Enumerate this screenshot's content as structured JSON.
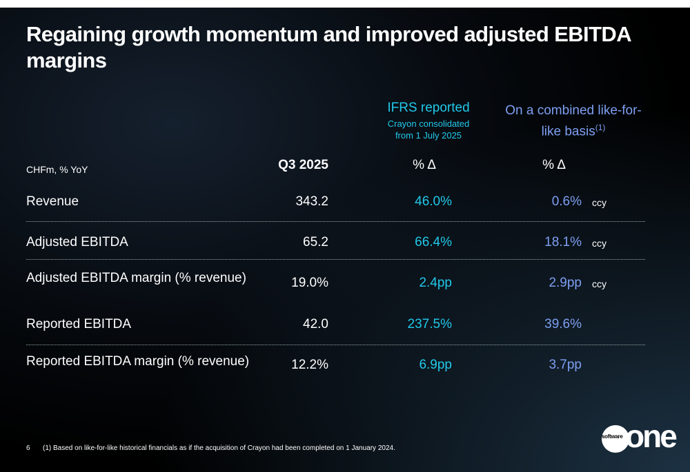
{
  "title": "Regaining growth momentum and improved adjusted EBITDA margins",
  "header": {
    "ifrs_title": "IFRS reported",
    "ifrs_sub1": "Crayon consolidated",
    "ifrs_sub2": "from 1 July 2025",
    "combined_title": "On a combined like-for-like basis",
    "combined_sup": "(1)",
    "unit_label": "CHFm, % YoY",
    "col_q": "Q3 2025",
    "col_ifrs": "% Δ",
    "col_combined": "% Δ"
  },
  "rows": [
    {
      "label": "Revenue",
      "q": "343.2",
      "ifrs": "46.0%",
      "combined": "0.6%",
      "note": "ccy"
    },
    {
      "label": "Adjusted EBITDA",
      "q": "65.2",
      "ifrs": "66.4%",
      "combined": "18.1%",
      "note": "ccy"
    },
    {
      "label": "Adjusted EBITDA margin (% revenue)",
      "q": "19.0%",
      "ifrs": "2.4pp",
      "combined": "2.9pp",
      "note": "ccy"
    },
    {
      "label": "Reported EBITDA",
      "q": "42.0",
      "ifrs": "237.5%",
      "combined": "39.6%"
    },
    {
      "label": "Reported EBITDA margin (% revenue)",
      "q": "12.2%",
      "ifrs": "6.9pp",
      "combined": "3.7pp"
    }
  ],
  "footer": {
    "page": "6",
    "note": "(1) Based on like-for-like historical financials as if the acquisition of Crayon had been completed on 1 January 2024."
  },
  "logo": {
    "small": "software",
    "big": "one"
  },
  "colors": {
    "ifrs": "#22c8ea",
    "combined": "#7e9ff2"
  }
}
